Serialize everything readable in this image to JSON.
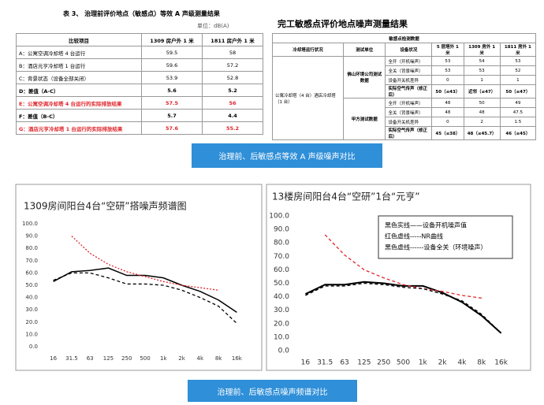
{
  "left_table": {
    "title": "表 3、  治理前评价地点（敏感点）等效 A 声级测量结果",
    "unit": "单位：dB(A)",
    "header": [
      "比较项目",
      "1309 房户外 1 米",
      "1811 房户外 1 米"
    ],
    "rows": [
      {
        "cells": [
          "A：公寓空调冷却塔 4 台运行",
          "59.5",
          "58"
        ]
      },
      {
        "cells": [
          "B：酒店元亨冷却塔 1 台运行",
          "59.6",
          "57.2"
        ]
      },
      {
        "cells": [
          "C：背景状态（设备全部关闭）",
          "53.9",
          "52.8"
        ]
      },
      {
        "cells": [
          "D：差值（A-C）",
          "5.6",
          "5.2"
        ],
        "bold": true
      },
      {
        "cells": [
          "E：公寓空调冷却塔 4 台运行的实际排放结果",
          "57.5",
          "56"
        ],
        "bold": true,
        "color": "#e0262c"
      },
      {
        "cells": [
          "F：差值（B-C）",
          "5.7",
          "4.4"
        ],
        "bold": true
      },
      {
        "cells": [
          "G：酒店元亨冷却塔 1 台运行的实际排放结果",
          "57.6",
          "55.2"
        ],
        "bold": true,
        "color": "#e0262c"
      }
    ]
  },
  "right_table": {
    "title": "完工敏感点评价地点噪声测量结果",
    "group_header": "敏感点检测数据",
    "header": [
      "冷却塔运行状况",
      "测试单位",
      "设备状况",
      "5 层塔外 1 米",
      "1309 房外 1 米",
      "1811 房外 1 米"
    ],
    "group_label": "公寓冷却塔（4 台）酒店冷却塔（1 台）",
    "sections": [
      {
        "unit": "佛山环境公司测试数据",
        "rows": [
          [
            "全开（开机噪声）",
            "53",
            "54",
            "53"
          ],
          [
            "全关（背景噪声）",
            "53",
            "53",
            "52"
          ],
          [
            "设备开关机差异",
            "0",
            "1",
            "1"
          ],
          [
            "实际空气传声（修正后）",
            "50（≤43）",
            "近邻（≤47）",
            "50（≤47）"
          ]
        ]
      },
      {
        "unit": "甲方测试数据",
        "rows": [
          [
            "全开（开机噪声）",
            "48",
            "50",
            "49"
          ],
          [
            "全关（背景噪声）",
            "48",
            "48",
            "47.5"
          ],
          [
            "设备开关机差异",
            "0",
            "2",
            "1.5"
          ],
          [
            "实际空气传声（修正后）",
            "45（≤38）",
            "48（≤45.7）",
            "46（≤45）"
          ]
        ]
      }
    ]
  },
  "caption_top": "治理前、后敏感点等效  A  声级噪声对比",
  "chart_data": [
    {
      "type": "line",
      "title": "1309房间阳台4台“空研”搭噪声频谱图",
      "categories": [
        "16",
        "31.5",
        "63",
        "125",
        "250",
        "500",
        "1k",
        "2k",
        "4k",
        "8k",
        "16k"
      ],
      "ylim": [
        0,
        100
      ],
      "yticks": [
        {
          "value": 0,
          "label": "0.0"
        },
        {
          "value": 10,
          "label": "10.0"
        },
        {
          "value": 20,
          "label": "20.0"
        },
        {
          "value": 30,
          "label": "30.0"
        },
        {
          "value": 40,
          "label": "40.0"
        },
        {
          "value": 50,
          "label": "50.0"
        },
        {
          "value": 60,
          "label": "60.0"
        },
        {
          "value": 70,
          "label": "70.0"
        },
        {
          "value": 80,
          "label": "80.0"
        },
        {
          "value": 90,
          "label": "90.0"
        },
        {
          "value": 100,
          "label": "100.0"
        }
      ],
      "grid": false,
      "series": [
        {
          "color": "#000000",
          "line_style": "solid",
          "values": [
            53,
            61,
            62,
            64,
            58,
            58,
            56,
            50,
            45,
            38,
            28
          ]
        },
        {
          "color": "#000000",
          "line_style": "dashed",
          "values": [
            54,
            60,
            60,
            56,
            51,
            51,
            50,
            46,
            40,
            33,
            19
          ]
        },
        {
          "color": "#e0262c",
          "line_style": "dotted",
          "values": [
            null,
            90,
            76,
            67,
            61,
            57,
            53,
            50,
            48,
            46,
            null
          ]
        }
      ]
    },
    {
      "type": "line",
      "title": "13楼房间阳台4台“空研”1台“元亨”",
      "categories": [
        "16",
        "31.5",
        "63",
        "125",
        "250",
        "500",
        "1k",
        "2k",
        "4k",
        "8k",
        "16k"
      ],
      "ylim": [
        0,
        100
      ],
      "yticks": [
        {
          "value": 0,
          "label": "0.0"
        },
        {
          "value": 10,
          "label": "10.0"
        },
        {
          "value": 20,
          "label": "20.0"
        },
        {
          "value": 30,
          "label": "30.0"
        },
        {
          "value": 40,
          "label": "40.0"
        },
        {
          "value": 50,
          "label": "50.0"
        },
        {
          "value": 60,
          "label": "60.0"
        },
        {
          "value": 70,
          "label": "70.0"
        },
        {
          "value": 80,
          "label": "80.0"
        },
        {
          "value": 90,
          "label": "90.0"
        },
        {
          "value": 100,
          "label": "100.0"
        }
      ],
      "grid": false,
      "legend": "upper right",
      "series": [
        {
          "name": "黑色实线——设备开机噪声值",
          "color": "#000000",
          "line_style": "solid",
          "values": [
            42,
            49,
            49,
            51,
            50,
            48,
            48,
            43,
            36,
            26,
            13
          ]
        },
        {
          "name": "红色虚线-----NR曲线",
          "color": "#e0262c",
          "line_style": "dashed",
          "values": [
            null,
            86,
            71,
            60,
            54,
            49,
            46,
            44,
            41,
            39,
            null
          ]
        },
        {
          "name": "黑色虚线------设备全关（环境噪声）",
          "color": "#000000",
          "line_style": "dashed",
          "values": [
            41,
            48,
            48,
            50,
            49,
            47,
            46,
            42,
            37,
            27,
            13
          ]
        }
      ]
    }
  ],
  "caption_bottom": "治理前、后敏感点噪声频谱对比"
}
